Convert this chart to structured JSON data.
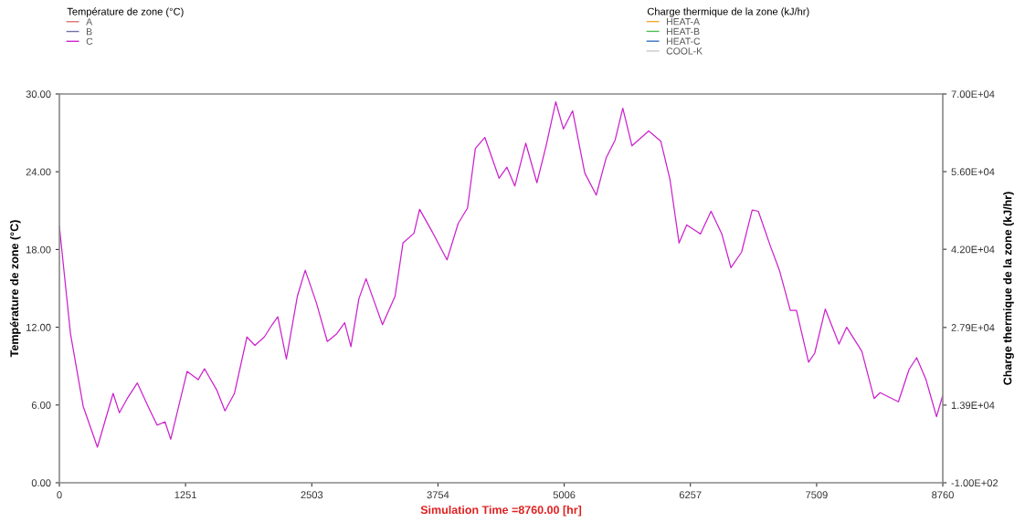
{
  "chart_data": {
    "type": "line",
    "xlabel": "Simulation Time =8760.00 [hr]",
    "ylabel": "Température de zone (°C)",
    "y2label": "Charge thermique de la zone (kJ/hr)",
    "xlim": [
      0,
      8760
    ],
    "xticks": [
      0,
      1251,
      2503,
      3754,
      5006,
      6257,
      7509,
      8760
    ],
    "ylim": [
      0,
      30
    ],
    "yticks": [
      {
        "value": 0,
        "label": "0.00"
      },
      {
        "value": 6,
        "label": "6.00"
      },
      {
        "value": 12,
        "label": "12.00"
      },
      {
        "value": 18,
        "label": "18.00"
      },
      {
        "value": 24,
        "label": "24.00"
      },
      {
        "value": 30,
        "label": "30.00"
      }
    ],
    "y2lim": [
      -100,
      70000
    ],
    "y2ticks": [
      {
        "value": -100,
        "label": "-1.00E+02"
      },
      {
        "value": 13900,
        "label": "1.39E+04"
      },
      {
        "value": 27900,
        "label": "2.79E+04"
      },
      {
        "value": 42000,
        "label": "4.20E+04"
      },
      {
        "value": 56000,
        "label": "5.60E+04"
      },
      {
        "value": 70000,
        "label": "7.00E+04"
      }
    ],
    "legend": "top",
    "grid": false,
    "marker": "none",
    "line_style": "solid",
    "series": [
      {
        "name": "A",
        "color": "#e07070"
      },
      {
        "name": "B",
        "color": "#7070a8"
      },
      {
        "name": "C",
        "color": "#cc22cc",
        "x": [
          0,
          110,
          236,
          377,
          533,
          595,
          673,
          773,
          891,
          969,
          1048,
          1104,
          1267,
          1376,
          1439,
          1564,
          1642,
          1736,
          1860,
          1939,
          2032,
          2110,
          2166,
          2251,
          2360,
          2438,
          2548,
          2657,
          2751,
          2829,
          2891,
          2970,
          3041,
          3126,
          3204,
          3329,
          3407,
          3516,
          3572,
          3688,
          3844,
          3954,
          4047,
          4125,
          4219,
          4360,
          4438,
          4516,
          4625,
          4735,
          4828,
          4922,
          4998,
          5089,
          5210,
          5324,
          5421,
          5511,
          5587,
          5678,
          5844,
          5964,
          6055,
          6145,
          6221,
          6357,
          6462,
          6569,
          6659,
          6765,
          6870,
          6931,
          7051,
          7142,
          7248,
          7309,
          7429,
          7490,
          7595,
          7731,
          7807,
          7957,
          8079,
          8139,
          8320,
          8426,
          8501,
          8592,
          8698,
          8760
        ],
        "values": [
          19.8,
          11.5,
          5.9,
          2.75,
          6.9,
          5.4,
          6.5,
          7.7,
          5.7,
          4.45,
          4.7,
          3.35,
          8.6,
          7.95,
          8.8,
          7.1,
          5.55,
          6.9,
          11.25,
          10.6,
          11.25,
          12.2,
          12.8,
          9.55,
          14.4,
          16.4,
          13.9,
          10.9,
          11.5,
          12.35,
          10.5,
          14.2,
          15.75,
          13.9,
          12.2,
          14.4,
          18.5,
          19.25,
          21.1,
          19.5,
          17.2,
          20.0,
          21.2,
          25.8,
          26.65,
          23.5,
          24.35,
          22.9,
          26.2,
          23.15,
          26.05,
          29.4,
          27.3,
          28.7,
          23.9,
          22.2,
          25.05,
          26.45,
          28.9,
          26.0,
          27.15,
          26.35,
          23.4,
          18.5,
          19.9,
          19.2,
          20.95,
          19.2,
          16.6,
          17.8,
          21.05,
          20.95,
          18.25,
          16.35,
          13.3,
          13.3,
          9.3,
          10.0,
          13.4,
          10.7,
          12.0,
          10.15,
          6.5,
          6.95,
          6.25,
          8.75,
          9.65,
          8.0,
          5.1,
          6.75
        ]
      },
      {
        "name": "HEAT-A",
        "color": "#f0a830",
        "axis": "y2"
      },
      {
        "name": "HEAT-B",
        "color": "#50c050",
        "axis": "y2"
      },
      {
        "name": "HEAT-C",
        "color": "#3070c0",
        "axis": "y2"
      },
      {
        "name": "COOL-K",
        "color": "#c8c8c8",
        "axis": "y2"
      }
    ]
  }
}
